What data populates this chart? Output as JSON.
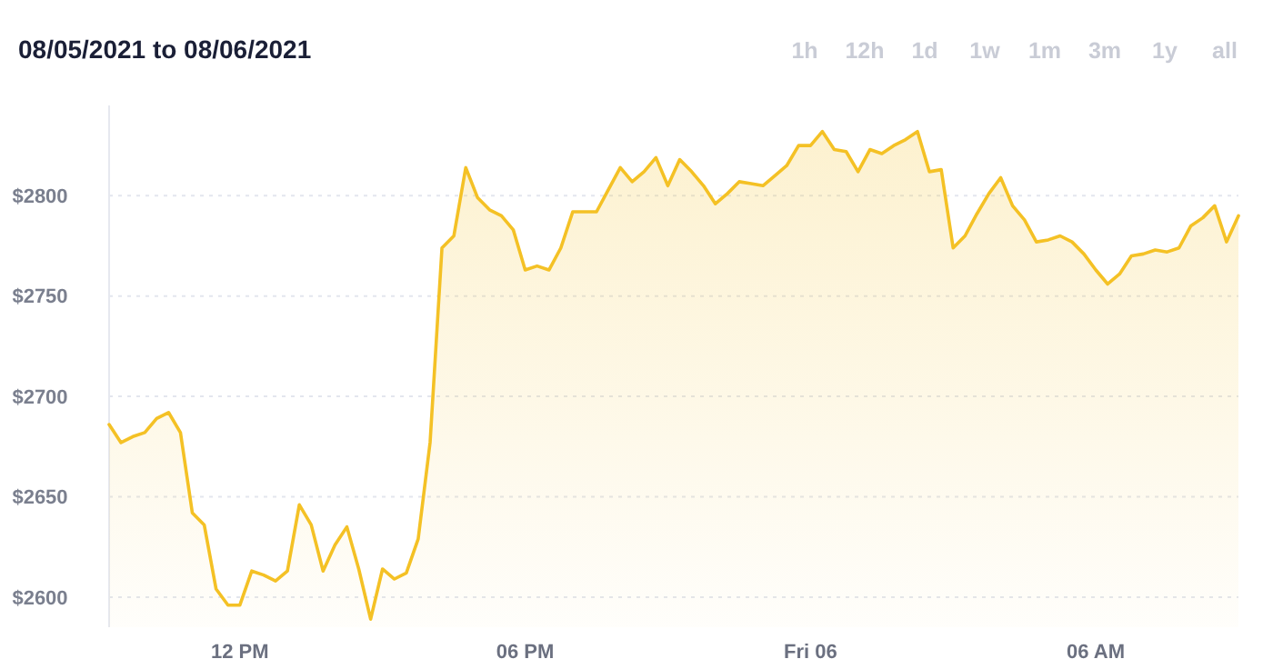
{
  "chart_data": {
    "type": "area",
    "title": "08/05/2021 to 08/06/2021",
    "annotations": [
      "1h",
      "12h",
      "1d",
      "1w",
      "1m",
      "3m",
      "1y",
      "all"
    ],
    "x": [
      "2021-08-05T09:15",
      "2021-08-05T09:30",
      "2021-08-05T09:45",
      "2021-08-05T10:00",
      "2021-08-05T10:15",
      "2021-08-05T10:30",
      "2021-08-05T10:45",
      "2021-08-05T11:00",
      "2021-08-05T11:15",
      "2021-08-05T11:30",
      "2021-08-05T11:45",
      "2021-08-05T12:00",
      "2021-08-05T12:15",
      "2021-08-05T12:30",
      "2021-08-05T12:45",
      "2021-08-05T13:00",
      "2021-08-05T13:15",
      "2021-08-05T13:30",
      "2021-08-05T13:45",
      "2021-08-05T14:00",
      "2021-08-05T14:15",
      "2021-08-05T14:30",
      "2021-08-05T14:45",
      "2021-08-05T15:00",
      "2021-08-05T15:15",
      "2021-08-05T15:30",
      "2021-08-05T15:45",
      "2021-08-05T16:00",
      "2021-08-05T16:15",
      "2021-08-05T16:30",
      "2021-08-05T16:45",
      "2021-08-05T17:00",
      "2021-08-05T17:15",
      "2021-08-05T17:30",
      "2021-08-05T17:45",
      "2021-08-05T18:00",
      "2021-08-05T18:15",
      "2021-08-05T18:30",
      "2021-08-05T18:45",
      "2021-08-05T19:00",
      "2021-08-05T19:15",
      "2021-08-05T19:30",
      "2021-08-05T19:45",
      "2021-08-05T20:00",
      "2021-08-05T20:15",
      "2021-08-05T20:30",
      "2021-08-05T20:45",
      "2021-08-05T21:00",
      "2021-08-05T21:15",
      "2021-08-05T21:30",
      "2021-08-05T21:45",
      "2021-08-05T22:00",
      "2021-08-05T22:15",
      "2021-08-05T22:30",
      "2021-08-05T22:45",
      "2021-08-05T23:00",
      "2021-08-05T23:15",
      "2021-08-05T23:30",
      "2021-08-05T23:45",
      "2021-08-06T00:00",
      "2021-08-06T00:15",
      "2021-08-06T00:30",
      "2021-08-06T00:45",
      "2021-08-06T01:00",
      "2021-08-06T01:15",
      "2021-08-06T01:30",
      "2021-08-06T01:45",
      "2021-08-06T02:00",
      "2021-08-06T02:15",
      "2021-08-06T02:30",
      "2021-08-06T02:45",
      "2021-08-06T03:00",
      "2021-08-06T03:15",
      "2021-08-06T03:30",
      "2021-08-06T03:45",
      "2021-08-06T04:00",
      "2021-08-06T04:15",
      "2021-08-06T04:30",
      "2021-08-06T04:45",
      "2021-08-06T05:00",
      "2021-08-06T05:15",
      "2021-08-06T05:30",
      "2021-08-06T05:45",
      "2021-08-06T06:00",
      "2021-08-06T06:15",
      "2021-08-06T06:30",
      "2021-08-06T06:45",
      "2021-08-06T07:00",
      "2021-08-06T07:15",
      "2021-08-06T07:30",
      "2021-08-06T07:45",
      "2021-08-06T08:00",
      "2021-08-06T08:15",
      "2021-08-06T08:30",
      "2021-08-06T08:45",
      "2021-08-06T09:00"
    ],
    "series": [
      {
        "color": "#f4c125",
        "values": [
          2686,
          2677,
          2680,
          2682,
          2689,
          2692,
          2682,
          2642,
          2636,
          2604,
          2596,
          2596,
          2613,
          2611,
          2608,
          2613,
          2646,
          2636,
          2613,
          2626,
          2635,
          2614,
          2589,
          2614,
          2609,
          2612,
          2629,
          2677,
          2774,
          2780,
          2814,
          2799,
          2793,
          2790,
          2783,
          2763,
          2765,
          2763,
          2774,
          2792,
          2792,
          2792,
          2803,
          2814,
          2807,
          2812,
          2819,
          2805,
          2818,
          2812,
          2805,
          2796,
          2801,
          2807,
          2806,
          2805,
          2810,
          2815,
          2825,
          2825,
          2832,
          2823,
          2822,
          2812,
          2823,
          2821,
          2825,
          2828,
          2832,
          2812,
          2813,
          2774,
          2780,
          2791,
          2801,
          2809,
          2795,
          2788,
          2777,
          2778,
          2780,
          2777,
          2771,
          2763,
          2756,
          2761,
          2770,
          2771,
          2773,
          2772,
          2774,
          2785,
          2789,
          2795,
          2777,
          2790
        ]
      }
    ],
    "xlim": [
      "2021-08-05T09:15",
      "2021-08-06T09:00"
    ],
    "xticks": [
      {
        "value": "2021-08-05T12:00",
        "label": "12 PM"
      },
      {
        "value": "2021-08-05T18:00",
        "label": "06 PM"
      },
      {
        "value": "2021-08-06T00:00",
        "label": "Fri 06"
      },
      {
        "value": "2021-08-06T06:00",
        "label": "06 AM"
      }
    ],
    "ylim": [
      2585,
      2845
    ],
    "yticks": [
      {
        "value": 2600,
        "label": "$2600"
      },
      {
        "value": 2650,
        "label": "$2650"
      },
      {
        "value": 2700,
        "label": "$2700"
      },
      {
        "value": 2750,
        "label": "$2750"
      },
      {
        "value": 2800,
        "label": "$2800"
      }
    ],
    "grid": "y"
  }
}
